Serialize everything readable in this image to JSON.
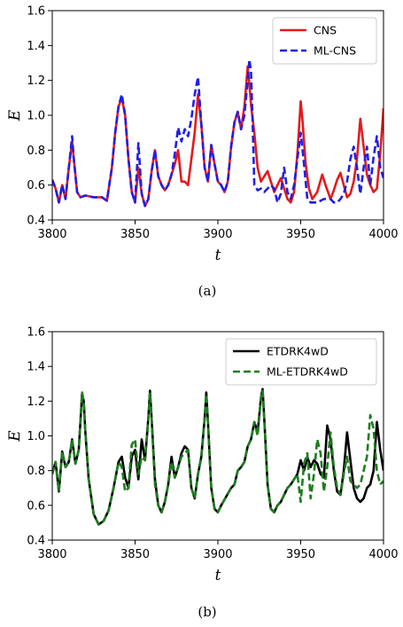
{
  "chart_data": [
    {
      "type": "line",
      "caption": "(a)",
      "xlabel": "t",
      "ylabel": "E",
      "xlim": [
        3800,
        4000
      ],
      "ylim": [
        0.4,
        1.6
      ],
      "xticks": [
        "3800",
        "3850",
        "3900",
        "3950",
        "4000"
      ],
      "yticks": [
        "0.4",
        "0.6",
        "0.8",
        "1.0",
        "1.2",
        "1.4",
        "1.6"
      ],
      "legend_position": "top-right",
      "series": [
        {
          "name": "CNS",
          "color": "#e41a1c",
          "style": "solid",
          "x": [
            3800,
            3802,
            3804,
            3806,
            3808,
            3810,
            3812,
            3813,
            3815,
            3817,
            3820,
            3825,
            3830,
            3833,
            3836,
            3838,
            3840,
            3842,
            3844,
            3846,
            3848,
            3850,
            3852,
            3854,
            3856,
            3858,
            3860,
            3862,
            3864,
            3866,
            3868,
            3870,
            3872,
            3874,
            3876,
            3878,
            3880,
            3882,
            3884,
            3886,
            3888,
            3890,
            3892,
            3894,
            3896,
            3898,
            3900,
            3902,
            3904,
            3906,
            3908,
            3910,
            3912,
            3914,
            3916,
            3918,
            3919,
            3920,
            3922,
            3924,
            3926,
            3928,
            3930,
            3932,
            3934,
            3936,
            3938,
            3940,
            3942,
            3944,
            3946,
            3948,
            3950,
            3951,
            3953,
            3955,
            3957,
            3960,
            3963,
            3965,
            3968,
            3970,
            3972,
            3974,
            3976,
            3978,
            3980,
            3982,
            3984,
            3986,
            3988,
            3990,
            3992,
            3994,
            3996,
            3998,
            4000
          ],
          "values": [
            0.63,
            0.58,
            0.5,
            0.6,
            0.52,
            0.7,
            0.85,
            0.75,
            0.56,
            0.53,
            0.54,
            0.53,
            0.53,
            0.51,
            0.7,
            0.9,
            1.05,
            1.1,
            1.0,
            0.75,
            0.56,
            0.5,
            0.7,
            0.55,
            0.48,
            0.52,
            0.68,
            0.8,
            0.65,
            0.6,
            0.57,
            0.6,
            0.66,
            0.72,
            0.8,
            0.62,
            0.62,
            0.6,
            0.75,
            0.9,
            1.12,
            0.95,
            0.7,
            0.62,
            0.83,
            0.72,
            0.62,
            0.6,
            0.56,
            0.62,
            0.82,
            0.96,
            1.02,
            0.92,
            1.05,
            1.28,
            1.18,
            1.06,
            0.9,
            0.7,
            0.62,
            0.65,
            0.68,
            0.62,
            0.56,
            0.6,
            0.64,
            0.58,
            0.52,
            0.5,
            0.56,
            0.78,
            1.08,
            0.98,
            0.72,
            0.58,
            0.52,
            0.56,
            0.66,
            0.6,
            0.52,
            0.57,
            0.63,
            0.67,
            0.6,
            0.53,
            0.55,
            0.62,
            0.75,
            0.98,
            0.82,
            0.66,
            0.6,
            0.56,
            0.58,
            0.78,
            1.04
          ]
        },
        {
          "name": "ML-CNS",
          "color": "#1f1fe8",
          "style": "dashed",
          "x": [
            3800,
            3802,
            3804,
            3806,
            3808,
            3810,
            3812,
            3813,
            3815,
            3817,
            3820,
            3825,
            3830,
            3833,
            3836,
            3838,
            3840,
            3842,
            3844,
            3846,
            3848,
            3850,
            3852,
            3854,
            3856,
            3858,
            3860,
            3862,
            3864,
            3866,
            3868,
            3870,
            3872,
            3874,
            3876,
            3878,
            3880,
            3882,
            3884,
            3886,
            3888,
            3890,
            3892,
            3894,
            3896,
            3898,
            3900,
            3902,
            3904,
            3906,
            3908,
            3910,
            3912,
            3914,
            3916,
            3918,
            3919,
            3920,
            3921,
            3922,
            3924,
            3926,
            3928,
            3930,
            3932,
            3934,
            3936,
            3938,
            3940,
            3942,
            3944,
            3946,
            3948,
            3950,
            3952,
            3954,
            3956,
            3958,
            3960,
            3962,
            3964,
            3966,
            3968,
            3970,
            3972,
            3974,
            3976,
            3978,
            3980,
            3982,
            3984,
            3986,
            3988,
            3990,
            3992,
            3994,
            3996,
            3998,
            4000
          ],
          "values": [
            0.63,
            0.58,
            0.5,
            0.6,
            0.52,
            0.7,
            0.88,
            0.75,
            0.56,
            0.53,
            0.54,
            0.53,
            0.53,
            0.51,
            0.7,
            0.9,
            1.05,
            1.12,
            1.0,
            0.75,
            0.56,
            0.5,
            0.84,
            0.55,
            0.48,
            0.52,
            0.68,
            0.8,
            0.65,
            0.6,
            0.57,
            0.6,
            0.66,
            0.78,
            0.93,
            0.85,
            0.92,
            0.88,
            0.98,
            1.12,
            1.22,
            0.95,
            0.7,
            0.62,
            0.83,
            0.72,
            0.62,
            0.6,
            0.56,
            0.62,
            0.82,
            0.96,
            1.02,
            0.92,
            1.0,
            1.2,
            1.32,
            1.25,
            0.95,
            0.6,
            0.57,
            0.58,
            0.56,
            0.58,
            0.6,
            0.58,
            0.5,
            0.55,
            0.7,
            0.56,
            0.52,
            0.6,
            0.75,
            0.9,
            0.72,
            0.52,
            0.5,
            0.5,
            0.5,
            0.51,
            0.52,
            0.52,
            0.52,
            0.5,
            0.5,
            0.52,
            0.55,
            0.62,
            0.75,
            0.82,
            0.7,
            0.55,
            0.7,
            0.82,
            0.6,
            0.76,
            0.88,
            0.7,
            0.64
          ]
        }
      ]
    },
    {
      "type": "line",
      "caption": "(b)",
      "xlabel": "t",
      "ylabel": "E",
      "xlim": [
        3800,
        4000
      ],
      "ylim": [
        0.4,
        1.6
      ],
      "xticks": [
        "3800",
        "3850",
        "3900",
        "3950",
        "4000"
      ],
      "yticks": [
        "0.4",
        "0.6",
        "0.8",
        "1.0",
        "1.2",
        "1.4",
        "1.6"
      ],
      "legend_position": "top-right",
      "series": [
        {
          "name": "ETDRK4wD",
          "color": "#000000",
          "style": "solid",
          "x": [
            3800,
            3802,
            3804,
            3806,
            3808,
            3810,
            3812,
            3814,
            3816,
            3818,
            3819,
            3820,
            3822,
            3825,
            3828,
            3831,
            3834,
            3837,
            3840,
            3842,
            3844,
            3846,
            3848,
            3850,
            3852,
            3854,
            3856,
            3858,
            3859,
            3860,
            3862,
            3864,
            3866,
            3868,
            3870,
            3872,
            3874,
            3876,
            3878,
            3880,
            3882,
            3884,
            3886,
            3888,
            3890,
            3892,
            3893,
            3894,
            3896,
            3898,
            3900,
            3902,
            3905,
            3908,
            3910,
            3912,
            3914,
            3916,
            3918,
            3920,
            3922,
            3924,
            3926,
            3927,
            3928,
            3930,
            3932,
            3934,
            3936,
            3938,
            3940,
            3942,
            3944,
            3946,
            3948,
            3950,
            3952,
            3954,
            3956,
            3958,
            3960,
            3962,
            3964,
            3966,
            3968,
            3970,
            3972,
            3974,
            3976,
            3978,
            3980,
            3982,
            3984,
            3986,
            3988,
            3990,
            3992,
            3994,
            3996,
            3998,
            4000
          ],
          "values": [
            0.78,
            0.85,
            0.68,
            0.91,
            0.82,
            0.85,
            0.98,
            0.84,
            0.92,
            1.24,
            1.2,
            1.02,
            0.75,
            0.55,
            0.49,
            0.51,
            0.57,
            0.7,
            0.85,
            0.88,
            0.76,
            0.7,
            0.88,
            0.92,
            0.75,
            0.98,
            0.86,
            1.1,
            1.26,
            1.1,
            0.75,
            0.6,
            0.56,
            0.62,
            0.72,
            0.88,
            0.76,
            0.82,
            0.9,
            0.94,
            0.92,
            0.7,
            0.64,
            0.78,
            0.88,
            1.1,
            1.25,
            1.08,
            0.7,
            0.58,
            0.56,
            0.6,
            0.65,
            0.7,
            0.72,
            0.8,
            0.82,
            0.85,
            0.94,
            0.98,
            1.08,
            1.02,
            1.22,
            1.27,
            1.1,
            0.72,
            0.58,
            0.56,
            0.6,
            0.62,
            0.66,
            0.7,
            0.72,
            0.75,
            0.78,
            0.86,
            0.8,
            0.88,
            0.82,
            0.86,
            0.84,
            0.78,
            0.76,
            1.06,
            0.98,
            0.8,
            0.68,
            0.66,
            0.8,
            1.02,
            0.86,
            0.7,
            0.64,
            0.62,
            0.64,
            0.7,
            0.72,
            0.8,
            1.08,
            0.92,
            0.8
          ]
        },
        {
          "name": "ML-ETDRK4wD",
          "color": "#1e7d1e",
          "style": "dashed",
          "x": [
            3800,
            3802,
            3804,
            3806,
            3808,
            3810,
            3812,
            3814,
            3816,
            3818,
            3819,
            3820,
            3822,
            3825,
            3828,
            3831,
            3834,
            3837,
            3840,
            3842,
            3844,
            3846,
            3848,
            3850,
            3852,
            3854,
            3856,
            3858,
            3859,
            3860,
            3862,
            3864,
            3866,
            3868,
            3870,
            3872,
            3874,
            3876,
            3878,
            3880,
            3882,
            3884,
            3886,
            3888,
            3890,
            3892,
            3893,
            3894,
            3896,
            3898,
            3900,
            3902,
            3905,
            3908,
            3910,
            3912,
            3914,
            3916,
            3918,
            3920,
            3922,
            3924,
            3926,
            3927,
            3928,
            3930,
            3932,
            3934,
            3936,
            3938,
            3940,
            3942,
            3944,
            3946,
            3948,
            3950,
            3952,
            3954,
            3956,
            3958,
            3960,
            3962,
            3964,
            3966,
            3968,
            3970,
            3972,
            3974,
            3976,
            3978,
            3980,
            3982,
            3984,
            3986,
            3988,
            3990,
            3992,
            3994,
            3996,
            3998,
            4000
          ],
          "values": [
            0.78,
            0.85,
            0.68,
            0.91,
            0.82,
            0.85,
            0.98,
            0.84,
            0.92,
            1.25,
            1.2,
            1.02,
            0.75,
            0.55,
            0.49,
            0.51,
            0.57,
            0.7,
            0.85,
            0.82,
            0.68,
            0.7,
            0.95,
            0.98,
            0.78,
            0.88,
            0.86,
            1.1,
            1.25,
            1.1,
            0.72,
            0.6,
            0.56,
            0.62,
            0.72,
            0.85,
            0.76,
            0.82,
            0.88,
            0.9,
            0.92,
            0.7,
            0.64,
            0.78,
            0.88,
            1.1,
            1.24,
            1.08,
            0.7,
            0.58,
            0.56,
            0.6,
            0.65,
            0.7,
            0.72,
            0.8,
            0.82,
            0.85,
            0.94,
            0.98,
            1.08,
            1.0,
            1.22,
            1.26,
            1.1,
            0.72,
            0.58,
            0.56,
            0.6,
            0.62,
            0.66,
            0.7,
            0.72,
            0.75,
            0.78,
            0.62,
            0.84,
            0.9,
            0.64,
            0.78,
            0.98,
            0.9,
            0.68,
            0.82,
            1.02,
            0.82,
            0.7,
            0.66,
            0.78,
            0.88,
            0.74,
            0.72,
            0.7,
            0.72,
            0.8,
            0.88,
            1.12,
            1.04,
            0.8,
            0.72,
            0.74
          ]
        }
      ]
    }
  ]
}
